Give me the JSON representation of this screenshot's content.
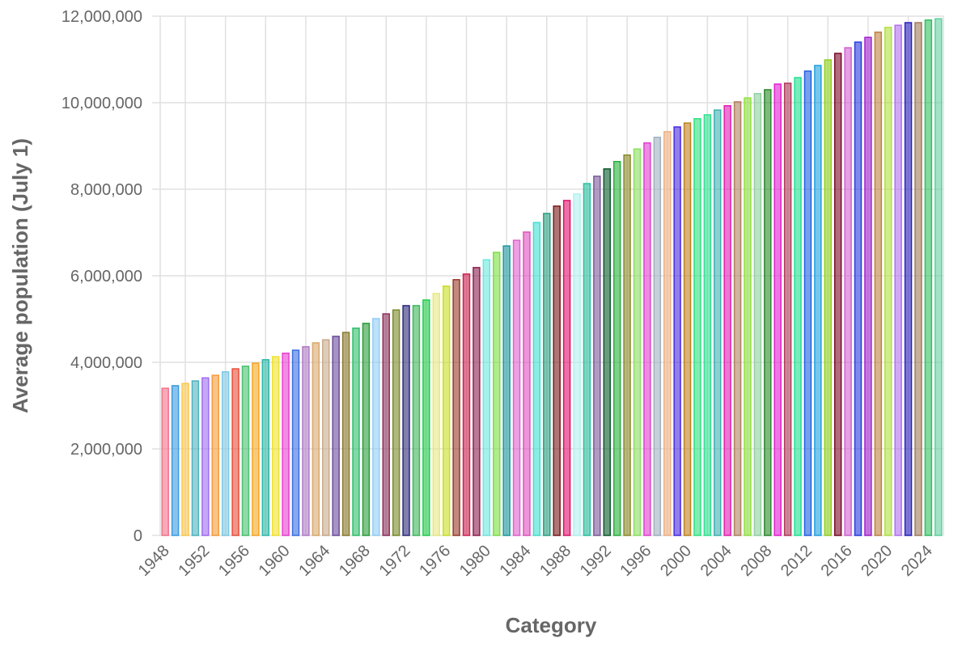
{
  "chart_data": {
    "type": "bar",
    "x_label": "Category",
    "y_label": "Average population (July 1)",
    "categories": [
      "1948",
      null,
      null,
      null,
      "1952",
      null,
      null,
      null,
      "1956",
      null,
      null,
      null,
      "1960",
      null,
      null,
      null,
      "1964",
      null,
      null,
      null,
      "1968",
      null,
      null,
      null,
      "1972",
      null,
      null,
      null,
      "1976",
      null,
      null,
      null,
      "1980",
      null,
      null,
      null,
      "1984",
      null,
      null,
      null,
      "1988",
      null,
      null,
      null,
      "1992",
      null,
      null,
      null,
      "1996",
      null,
      null,
      null,
      "2000",
      null,
      null,
      null,
      "2004",
      null,
      null,
      null,
      "2008",
      null,
      null,
      null,
      "2012",
      null,
      null,
      null,
      "2016",
      null,
      null,
      null,
      "2020",
      null,
      null,
      null,
      "2024",
      null
    ],
    "values": [
      3400000,
      3460000,
      3510000,
      3570000,
      3640000,
      3700000,
      3780000,
      3850000,
      3910000,
      3980000,
      4060000,
      4130000,
      4210000,
      4280000,
      4360000,
      4450000,
      4520000,
      4600000,
      4690000,
      4790000,
      4900000,
      5010000,
      5120000,
      5210000,
      5310000,
      5310000,
      5440000,
      5590000,
      5760000,
      5910000,
      6040000,
      6190000,
      6370000,
      6540000,
      6690000,
      6820000,
      7010000,
      7230000,
      7440000,
      7610000,
      7740000,
      7890000,
      8130000,
      8300000,
      8470000,
      8640000,
      8790000,
      8930000,
      9070000,
      9200000,
      9330000,
      9440000,
      9530000,
      9630000,
      9720000,
      9830000,
      9930000,
      10020000,
      10110000,
      10210000,
      10300000,
      10430000,
      10450000,
      10580000,
      10730000,
      10860000,
      10990000,
      11140000,
      11270000,
      11400000,
      11510000,
      11630000,
      11740000,
      11790000,
      11850000,
      11850000,
      11910000,
      11940000
    ],
    "colors": [
      "#f4718a",
      "#3a9be0",
      "#f9c74f",
      "#4fb3bf",
      "#a06cf0",
      "#f39c3c",
      "#7ec8e3",
      "#e8503a",
      "#4bc071",
      "#f5a623",
      "#2fb8a8",
      "#f0e130",
      "#e83fd0",
      "#3a6fe0",
      "#b07cc6",
      "#d9a86c",
      "#c9a88a",
      "#6a4c9c",
      "#8b7a2c",
      "#2fbf6a",
      "#2a9d3a",
      "#8fcdf5",
      "#8e2f5a",
      "#7a8a2a",
      "#2c2a7a",
      "#3cb85a",
      "#1fcf4a",
      "#e8e880",
      "#c8e020",
      "#9a3a2a",
      "#d02050",
      "#8e2050",
      "#6ae8e0",
      "#7ae040",
      "#1a9aa0",
      "#e060d0",
      "#e050c0",
      "#40e0d0",
      "#2aa080",
      "#7a1a1a",
      "#e0106a",
      "#b0f0f0",
      "#2ac0a0",
      "#7a5a9a",
      "#0a5a2a",
      "#2ab03a",
      "#8a8a2a",
      "#8ae060",
      "#e040d0",
      "#a0b0c0",
      "#f0b080",
      "#4a2ae0",
      "#c08020",
      "#30e080",
      "#30e090",
      "#40b0b0",
      "#e020b0",
      "#b08060",
      "#90e040",
      "#90d0a0",
      "#2a8a2a",
      "#e020d0",
      "#b03a5a",
      "#20e090",
      "#2060e0",
      "#20a0e0",
      "#90d020",
      "#7a0a2a",
      "#d060d0",
      "#2a3ae0",
      "#a020d0",
      "#c08040",
      "#b0e040",
      "#b070f0",
      "#2a20c0",
      "#a07a5a",
      "#30c060",
      "#60d0a0"
    ],
    "ylim": [
      0,
      12000000
    ],
    "yticks": [
      0,
      {
        "value": 2000000,
        "label": "2,000,000"
      },
      {
        "value": 4000000,
        "label": "4,000,000"
      },
      {
        "value": 6000000,
        "label": "6,000,000"
      },
      {
        "value": 8000000,
        "label": "8,000,000"
      },
      {
        "value": 10000000,
        "label": "10,000,000"
      },
      {
        "value": 12000000,
        "label": "12,000,000"
      }
    ],
    "grid": true
  }
}
